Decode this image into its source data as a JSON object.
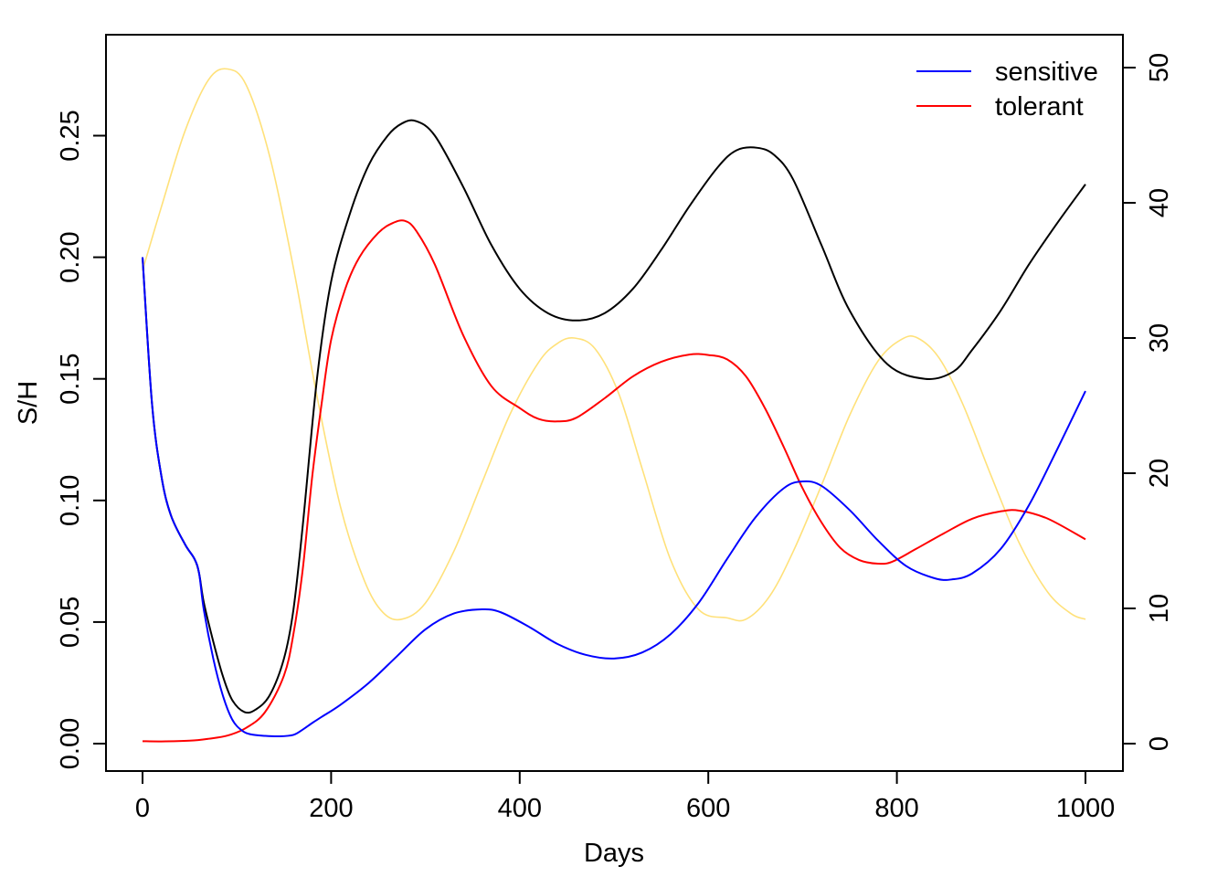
{
  "chart_data": {
    "type": "line",
    "title": "",
    "xlabel": "Days",
    "ylabel": "S/H",
    "y2label": "",
    "xlim": [
      0,
      1000
    ],
    "ylim": [
      0,
      0.28
    ],
    "y2lim": [
      0,
      50
    ],
    "x_ticks": [
      0,
      200,
      400,
      600,
      800,
      1000
    ],
    "y_ticks": [
      0.0,
      0.05,
      0.1,
      0.15,
      0.2,
      0.25
    ],
    "y_tick_labels": [
      "0.00",
      "0.05",
      "0.10",
      "0.15",
      "0.20",
      "0.25"
    ],
    "y2_ticks": [
      0,
      10,
      20,
      30,
      40,
      50
    ],
    "grid": false,
    "legend": {
      "position": "top-right",
      "entries": [
        {
          "label": "sensitive",
          "color": "#0000ff"
        },
        {
          "label": "tolerant",
          "color": "#ff0000"
        }
      ]
    },
    "series": [
      {
        "color": "#ffe17a",
        "axis": "right",
        "x": [
          0,
          20,
          45,
          70,
          90,
          110,
          135,
          160,
          185,
          210,
          235,
          255,
          275,
          300,
          330,
          360,
          390,
          420,
          440,
          458,
          480,
          505,
          530,
          560,
          590,
          620,
          640,
          665,
          690,
          720,
          750,
          780,
          805,
          822,
          845,
          870,
          900,
          930,
          960,
          985,
          1000
        ],
        "y": [
          35,
          39.7,
          45.3,
          49.1,
          49.9,
          48.7,
          43.4,
          35.2,
          25.7,
          17.5,
          12.1,
          9.7,
          9.2,
          10.4,
          14.2,
          19.3,
          24.4,
          28.2,
          29.6,
          30,
          29.2,
          25.9,
          20.3,
          13.6,
          9.9,
          9.3,
          9.2,
          10.9,
          14.2,
          19.1,
          24.3,
          28.3,
          29.9,
          30,
          28.5,
          25.1,
          19.8,
          14.8,
          11.2,
          9.6,
          9.2
        ]
      },
      {
        "color": "#000000",
        "axis": "left",
        "x": [
          0,
          10,
          20,
          30,
          45,
          55,
          60,
          65,
          75,
          85,
          95,
          108,
          120,
          135,
          150,
          160,
          170,
          185,
          200,
          220,
          240,
          260,
          275,
          290,
          310,
          340,
          370,
          400,
          430,
          460,
          490,
          520,
          550,
          580,
          610,
          630,
          652,
          670,
          690,
          720,
          750,
          790,
          830,
          860,
          880,
          910,
          940,
          970,
          1000
        ],
        "y": [
          0.2,
          0.14,
          0.11,
          0.094,
          0.082,
          0.076,
          0.07,
          0.058,
          0.042,
          0.028,
          0.018,
          0.013,
          0.014,
          0.02,
          0.035,
          0.055,
          0.09,
          0.15,
          0.19,
          0.218,
          0.238,
          0.25,
          0.255,
          0.256,
          0.25,
          0.229,
          0.205,
          0.187,
          0.177,
          0.174,
          0.177,
          0.187,
          0.203,
          0.221,
          0.237,
          0.244,
          0.245,
          0.242,
          0.232,
          0.205,
          0.178,
          0.156,
          0.15,
          0.153,
          0.162,
          0.178,
          0.197,
          0.214,
          0.23
        ]
      },
      {
        "color": "#ff0000",
        "axis": "left",
        "x": [
          0,
          20,
          50,
          70,
          90,
          110,
          130,
          150,
          160,
          170,
          180,
          190,
          200,
          215,
          230,
          250,
          265,
          278,
          290,
          310,
          340,
          370,
          400,
          420,
          440,
          460,
          490,
          520,
          550,
          580,
          600,
          620,
          640,
          660,
          680,
          700,
          720,
          740,
          760,
          780,
          795,
          820,
          850,
          880,
          910,
          930,
          960,
          1000
        ],
        "y": [
          0.001,
          0.0009,
          0.0012,
          0.002,
          0.0033,
          0.0065,
          0.013,
          0.028,
          0.045,
          0.072,
          0.11,
          0.14,
          0.166,
          0.187,
          0.2,
          0.21,
          0.214,
          0.215,
          0.211,
          0.197,
          0.168,
          0.147,
          0.138,
          0.1335,
          0.1325,
          0.134,
          0.142,
          0.151,
          0.157,
          0.16,
          0.1598,
          0.158,
          0.151,
          0.138,
          0.122,
          0.105,
          0.091,
          0.0805,
          0.0755,
          0.074,
          0.0748,
          0.08,
          0.0865,
          0.0925,
          0.0955,
          0.0958,
          0.0925,
          0.084
        ]
      },
      {
        "color": "#0000ff",
        "axis": "left",
        "x": [
          0,
          10,
          20,
          30,
          45,
          55,
          60,
          65,
          75,
          85,
          95,
          105,
          115,
          130,
          145,
          160,
          170,
          180,
          190,
          210,
          240,
          270,
          300,
          330,
          360,
          380,
          410,
          440,
          470,
          500,
          530,
          560,
          590,
          620,
          650,
          680,
          700,
          720,
          750,
          780,
          810,
          840,
          858,
          880,
          910,
          940,
          970,
          1000
        ],
        "y": [
          0.2,
          0.14,
          0.11,
          0.094,
          0.082,
          0.076,
          0.07,
          0.055,
          0.035,
          0.02,
          0.01,
          0.0055,
          0.0038,
          0.0032,
          0.003,
          0.0036,
          0.0058,
          0.0085,
          0.011,
          0.016,
          0.025,
          0.036,
          0.047,
          0.0535,
          0.0552,
          0.054,
          0.048,
          0.041,
          0.0365,
          0.035,
          0.0375,
          0.045,
          0.058,
          0.076,
          0.093,
          0.105,
          0.1078,
          0.106,
          0.096,
          0.0835,
          0.073,
          0.068,
          0.0675,
          0.07,
          0.08,
          0.098,
          0.121,
          0.145
        ]
      }
    ]
  }
}
